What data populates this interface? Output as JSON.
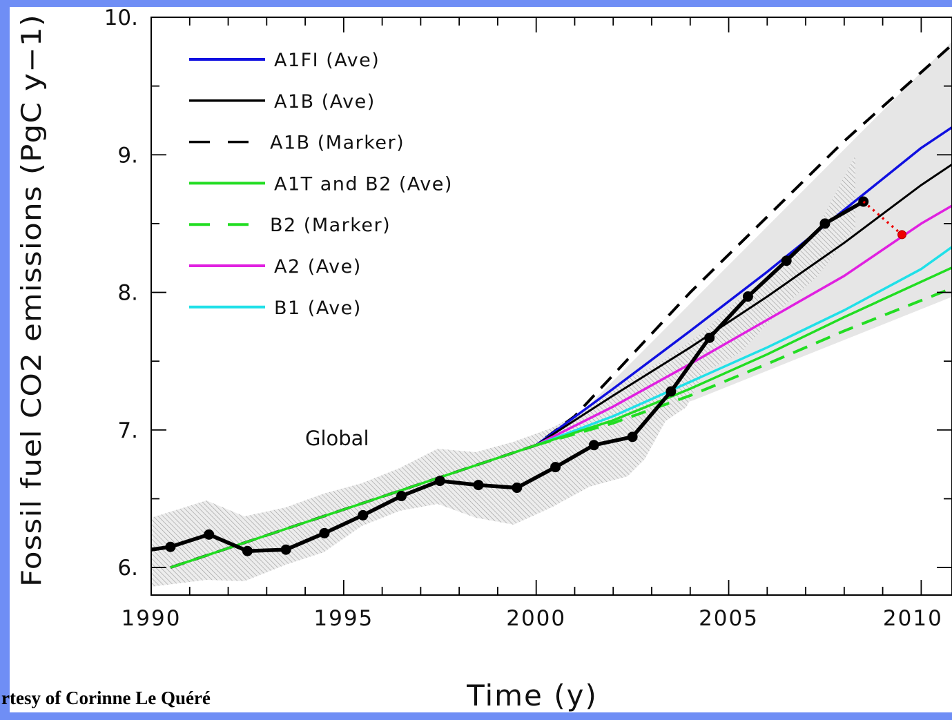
{
  "credit": "rtesy of Corinne Le Quéré",
  "chart_data": {
    "type": "line",
    "annotation": "Global",
    "xlabel": "Time (y)",
    "ylabel": "Fossil fuel CO2 emissions (PgC y−1)",
    "xlim": [
      1990,
      2010.8
    ],
    "ylim": [
      5.8,
      10.0
    ],
    "xticks": [
      1990,
      1995,
      2000,
      2005,
      2010
    ],
    "xtick_labels": [
      "1990",
      "1995",
      "2000",
      "2005",
      "2010"
    ],
    "yticks": [
      6,
      7,
      8,
      9,
      10
    ],
    "ytick_labels": [
      "6.",
      "7.",
      "8.",
      "9.",
      "10."
    ],
    "grid": false,
    "legend_position": "top-left",
    "legend": [
      {
        "label": "A1FI (Ave)",
        "color": "#1010e0",
        "dash": "solid",
        "kind": "blue"
      },
      {
        "label": "A1B (Ave)",
        "color": "#000000",
        "dash": "solid",
        "kind": "black"
      },
      {
        "label": "A1B (Marker)",
        "color": "#000000",
        "dash": "dashed",
        "kind": "blackdash"
      },
      {
        "label": "A1T and B2 (Ave)",
        "color": "#22dd22",
        "dash": "solid",
        "kind": "green"
      },
      {
        "label": "B2 (Marker)",
        "color": "#22dd22",
        "dash": "dashed",
        "kind": "greendash"
      },
      {
        "label": "A2 (Ave)",
        "color": "#e020e0",
        "dash": "solid",
        "kind": "magenta"
      },
      {
        "label": "B1 (Ave)",
        "color": "#20e0e8",
        "dash": "solid",
        "kind": "cyan"
      }
    ],
    "series": [
      {
        "name": "A1B (Marker)",
        "color": "#000000",
        "dash": "dashed",
        "kind": "blackdash",
        "x": [
          1990.5,
          2000,
          2001,
          2004,
          2006,
          2008,
          2010.8
        ],
        "y": [
          6.0,
          6.89,
          7.1,
          8.0,
          8.55,
          9.1,
          9.8
        ]
      },
      {
        "name": "A1FI (Ave)",
        "color": "#1010e0",
        "dash": "solid",
        "kind": "blue",
        "x": [
          2000,
          2002,
          2004,
          2006,
          2008,
          2010,
          2010.8
        ],
        "y": [
          6.89,
          7.3,
          7.72,
          8.15,
          8.6,
          9.05,
          9.2
        ]
      },
      {
        "name": "A1B (Ave)",
        "color": "#000000",
        "dash": "solid",
        "kind": "black",
        "x": [
          2000,
          2002,
          2004,
          2006,
          2008,
          2010,
          2010.8
        ],
        "y": [
          6.89,
          7.25,
          7.6,
          7.97,
          8.36,
          8.78,
          8.93
        ]
      },
      {
        "name": "A2 (Ave)",
        "color": "#e020e0",
        "dash": "solid",
        "kind": "magenta",
        "x": [
          2000,
          2002,
          2004,
          2006,
          2008,
          2010,
          2010.8
        ],
        "y": [
          6.89,
          7.17,
          7.48,
          7.8,
          8.12,
          8.5,
          8.63
        ]
      },
      {
        "name": "B1 (Ave)",
        "color": "#20e0e8",
        "dash": "solid",
        "kind": "cyan",
        "x": [
          2000,
          2002,
          2004,
          2006,
          2008,
          2010,
          2010.8
        ],
        "y": [
          6.89,
          7.1,
          7.35,
          7.6,
          7.87,
          8.17,
          8.33
        ]
      },
      {
        "name": "A1T and B2 (Ave)",
        "color": "#22dd22",
        "dash": "solid",
        "kind": "green",
        "x": [
          1990.5,
          2000,
          2002,
          2004,
          2006,
          2008,
          2010.8
        ],
        "y": [
          6.0,
          6.89,
          7.07,
          7.3,
          7.55,
          7.82,
          8.18
        ]
      },
      {
        "name": "B2 (Marker)",
        "color": "#22dd22",
        "dash": "dashed",
        "kind": "greendash",
        "x": [
          2000,
          2002,
          2004,
          2006,
          2008,
          2010.8
        ],
        "y": [
          6.89,
          7.05,
          7.25,
          7.48,
          7.72,
          8.03
        ]
      },
      {
        "name": "Observed",
        "color": "#000000",
        "dash": "solid",
        "kind": "observed",
        "x": [
          1990,
          1990.5,
          1991.5,
          1992.5,
          1993.5,
          1994.5,
          1995.5,
          1996.5,
          1997.5,
          1998.5,
          1999.5,
          2000.5,
          2001.5,
          2002.5,
          2003.5,
          2004.5,
          2005.5,
          2006.5,
          2007.5,
          2008.5
        ],
        "y": [
          6.13,
          6.15,
          6.24,
          6.12,
          6.13,
          6.25,
          6.38,
          6.52,
          6.63,
          6.6,
          6.58,
          6.73,
          6.89,
          6.95,
          7.28,
          7.67,
          7.97,
          8.23,
          8.5,
          8.66
        ]
      },
      {
        "name": "Projected drop",
        "color": "#ee0000",
        "dash": "dotted",
        "kind": "red",
        "x": [
          2008.5,
          2009.5
        ],
        "y": [
          8.66,
          8.42
        ]
      }
    ]
  }
}
